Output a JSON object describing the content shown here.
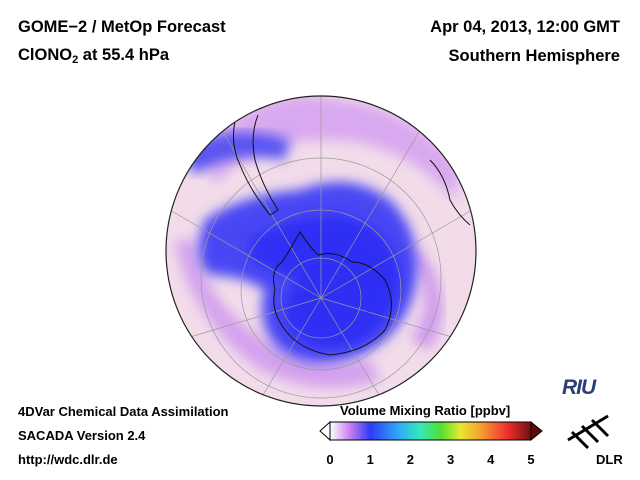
{
  "header": {
    "title_line1": "GOME−2 / MetOp Forecast",
    "title_species": "ClONO",
    "title_sub": "2",
    "title_level": " at 55.4 hPa",
    "date": "Apr 04, 2013, 12:00 GMT",
    "hemisphere": "Southern Hemisphere"
  },
  "footer": {
    "line1": "4DVar Chemical Data Assimilation",
    "line2": "SACADA Version 2.4",
    "line3": "http://wdc.dlr.de"
  },
  "colorbar": {
    "title": "Volume Mixing Ratio [ppbv]",
    "ticks": [
      "0",
      "1",
      "2",
      "3",
      "4",
      "5"
    ],
    "min": 0,
    "max": 5,
    "colors": [
      "#ffffff",
      "#c87ef0",
      "#2f3bf5",
      "#2fb0f5",
      "#35e8b8",
      "#50e030",
      "#e8e830",
      "#f5a030",
      "#f03030",
      "#701010"
    ]
  },
  "logos": {
    "riu": "RIU",
    "dlr": "DLR"
  },
  "map": {
    "projection": "orthographic",
    "center": "south-pole",
    "colors": {
      "background_low": "#f2dcea",
      "mid_purple": "#d8a6ec",
      "high_blue": "#3a38f4"
    }
  }
}
